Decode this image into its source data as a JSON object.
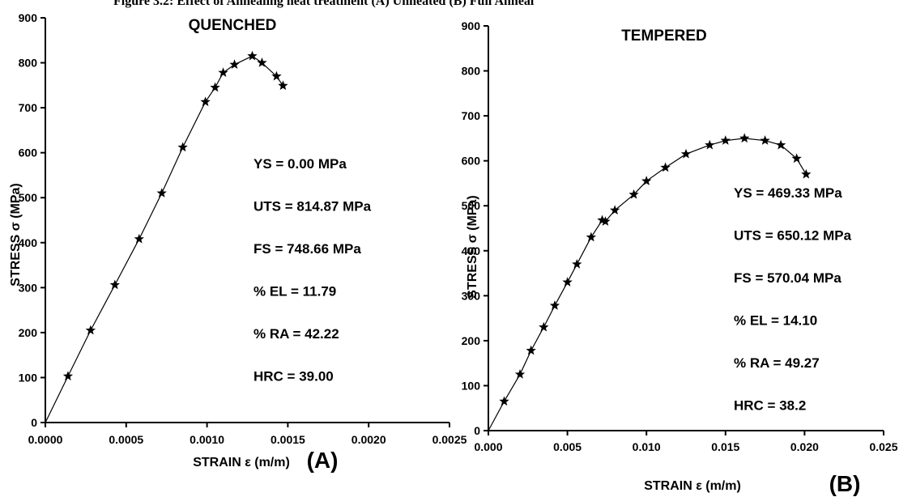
{
  "caption": "Figure 3.2: Effect of Annealing heat treatment (A) Unheated (B) Full Anneal",
  "chart_data": [
    {
      "type": "line",
      "title": "QUENCHED",
      "panel_label": "(A)",
      "xlabel": "STRAIN ε (m/m)",
      "ylabel": "STRESS σ (MPa)",
      "xlim": [
        0,
        0.0025
      ],
      "ylim": [
        0,
        900
      ],
      "xticks": [
        "0.0000",
        "0.0005",
        "0.0010",
        "0.0015",
        "0.0020",
        "0.0025"
      ],
      "yticks": [
        "0",
        "100",
        "200",
        "300",
        "400",
        "500",
        "600",
        "700",
        "800",
        "900"
      ],
      "annotations": [
        "YS = 0.00 MPa",
        "UTS = 814.87 MPa",
        "FS = 748.66 MPa",
        "% EL = 11.79",
        "% RA = 42.22",
        "HRC = 39.00"
      ],
      "x": [
        0,
        0.00014,
        0.00028,
        0.00043,
        0.00058,
        0.00072,
        0.00085,
        0.00099,
        0.00105,
        0.0011,
        0.00117,
        0.00128,
        0.00134,
        0.00143,
        0.00147
      ],
      "y": [
        0,
        103,
        205,
        306,
        408,
        510,
        612,
        713,
        745,
        778,
        796,
        815,
        800,
        770,
        749
      ]
    },
    {
      "type": "line",
      "title": "TEMPERED",
      "panel_label": "(B)",
      "xlabel": "STRAIN ε (m/m)",
      "ylabel": "STRESS σ (MPa)",
      "xlim": [
        0,
        0.025
      ],
      "ylim": [
        0,
        900
      ],
      "xticks": [
        "0.000",
        "0.005",
        "0.010",
        "0.015",
        "0.020",
        "0.025"
      ],
      "yticks": [
        "0",
        "100",
        "200",
        "300",
        "400",
        "500",
        "600",
        "700",
        "800",
        "900"
      ],
      "annotations": [
        "YS = 469.33 MPa",
        "UTS = 650.12 MPa",
        "FS = 570.04 MPa",
        "% EL = 14.10",
        "% RA = 49.27",
        "HRC = 38.2"
      ],
      "x": [
        0,
        0.001,
        0.002,
        0.0027,
        0.0035,
        0.0042,
        0.005,
        0.0056,
        0.0065,
        0.0072,
        0.0074,
        0.008,
        0.0092,
        0.01,
        0.0112,
        0.0125,
        0.014,
        0.015,
        0.0162,
        0.0175,
        0.0185,
        0.0195,
        0.0201
      ],
      "y": [
        0,
        65,
        125,
        178,
        230,
        278,
        330,
        370,
        430,
        468,
        465,
        490,
        525,
        555,
        585,
        615,
        635,
        645,
        650,
        645,
        635,
        605,
        570
      ]
    }
  ]
}
